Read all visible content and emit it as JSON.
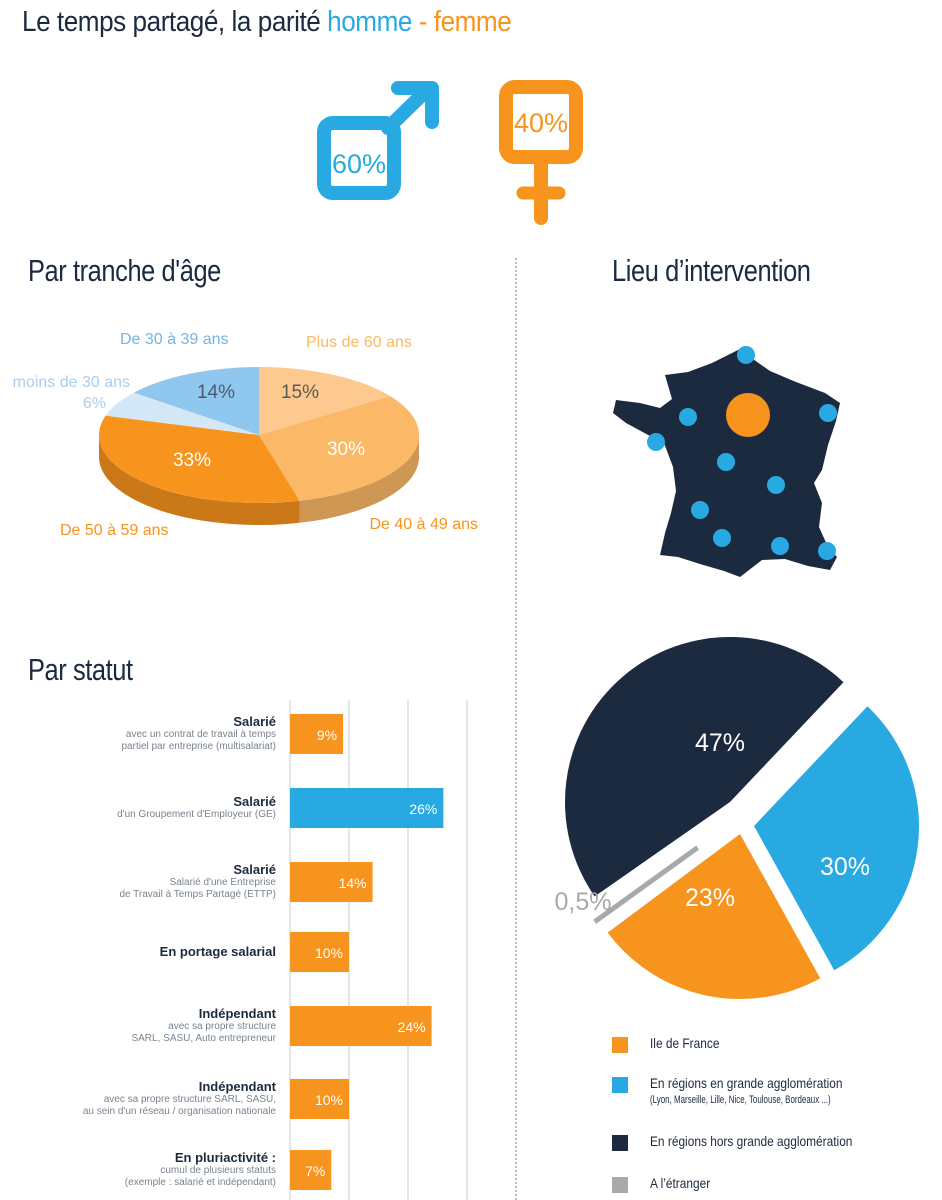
{
  "title": {
    "prefix": "Le temps partagé, la parité",
    "male": "homme",
    "dash": " - ",
    "female": "femme"
  },
  "gender": {
    "male_pct": "60%",
    "female_pct": "40%",
    "male_color": "#29a9e1",
    "female_color": "#f7941d"
  },
  "colors": {
    "orange": "#f7941d",
    "blue": "#29a9e1",
    "navy": "#1c2a3f",
    "grey": "#a7a9ac",
    "light_orange": "#fbb867",
    "pale_orange": "#fdc98e",
    "light_blue": "#8fc7ee",
    "pale_blue": "#d3e7f7"
  },
  "sections": {
    "age": "Par tranche d'âge",
    "lieu": "Lieu d’intervention",
    "statut": "Par statut"
  },
  "chart_data": [
    {
      "type": "pie",
      "title": "Par tranche d'âge",
      "slices": [
        {
          "label": "Plus de 60 ans",
          "value": 15,
          "value_label": "15%",
          "color": "#fdc98e"
        },
        {
          "label": "De 40 à 49 ans",
          "value": 30,
          "value_label": "30%",
          "color": "#fbb867"
        },
        {
          "label": "De 50 à 59 ans",
          "value": 33,
          "value_label": "33%",
          "color": "#f7941d"
        },
        {
          "label": "moins de 30 ans",
          "value": 6,
          "value_label": "6%",
          "color": "#d3e7f7"
        },
        {
          "label": "De 30 à 39 ans",
          "value": 14,
          "value_label": "14%",
          "color": "#8fc7ee"
        }
      ]
    },
    {
      "type": "bar",
      "title": "Par statut",
      "orientation": "horizontal",
      "categories": [
        {
          "title": "Salarié",
          "sub": [
            "avec un contrat de travail à temps",
            "partiel par entreprise (multisalariat)"
          ]
        },
        {
          "title": "Salarié",
          "sub": [
            "d'un Groupement d'Employeur (GE)"
          ]
        },
        {
          "title": "Salarié",
          "sub": [
            "Salarié d'une Entreprise",
            "de Travail à Temps Partagé (ETTP)"
          ]
        },
        {
          "title": "En portage salarial",
          "sub": []
        },
        {
          "title": "Indépendant",
          "sub": [
            "avec sa propre structure",
            "SARL, SASU, Auto entrepreneur"
          ]
        },
        {
          "title": "Indépendant",
          "sub": [
            "avec sa propre structure SARL, SASU,",
            "au sein d'un réseau / organisation nationale"
          ]
        },
        {
          "title": "En pluriactivité :",
          "sub": [
            "cumul de plusieurs statuts",
            "(exemple : salarié et indépendant)"
          ]
        }
      ],
      "values": [
        9,
        26,
        14,
        10,
        24,
        10,
        7
      ],
      "value_labels": [
        "9%",
        "26%",
        "14%",
        "10%",
        "24%",
        "10%",
        "7%"
      ],
      "highlight_index": 1,
      "grid": true
    },
    {
      "type": "pie",
      "title": "Lieu d’intervention",
      "slices": [
        {
          "label": "En régions hors grande agglomération",
          "value": 47,
          "value_label": "47%",
          "color": "#1c2a3f"
        },
        {
          "label": "En régions en grande agglomération",
          "value": 30,
          "value_label": "30%",
          "color": "#29a9e1"
        },
        {
          "label": "Ile de France",
          "value": 23,
          "value_label": "23%",
          "color": "#f7941d"
        },
        {
          "label": "A l’étranger",
          "value": 0.5,
          "value_label": "0,5%",
          "color": "#a7a9ac"
        }
      ]
    }
  ],
  "legend": [
    {
      "label": "Ile de France",
      "sub": "",
      "color": "#f7941d"
    },
    {
      "label": "En régions en grande agglomération",
      "sub": "(Lyon, Marseille, Lille, Nice, Toulouse, Bordeaux ...)",
      "color": "#29a9e1"
    },
    {
      "label": "En régions hors grande agglomération",
      "sub": "",
      "color": "#1c2a3f"
    },
    {
      "label": "A l’étranger",
      "sub": "",
      "color": "#a7a9ac"
    }
  ],
  "map": {
    "icon": "france-map-icon"
  }
}
